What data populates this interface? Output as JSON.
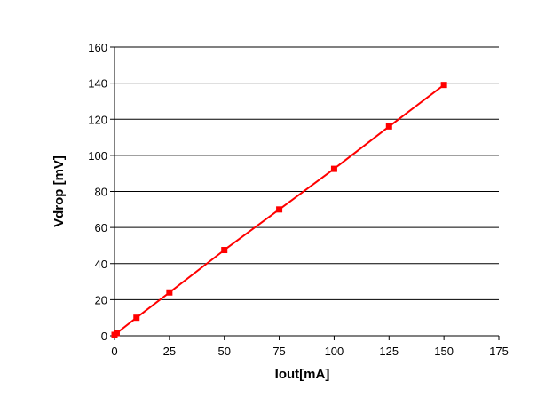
{
  "chart_data": {
    "type": "line",
    "title": "",
    "xlabel": "Iout[mA]",
    "ylabel": "Vdrop [mV]",
    "xlim": [
      0,
      175
    ],
    "ylim": [
      0,
      160
    ],
    "xticks": [
      0,
      25,
      50,
      75,
      100,
      125,
      150,
      175
    ],
    "yticks": [
      0,
      20,
      40,
      60,
      80,
      100,
      120,
      140,
      160
    ],
    "grid": "horizontal",
    "legend": "none",
    "series": [
      {
        "color": "#ff0000",
        "marker": "square",
        "x": [
          0,
          1,
          10,
          25,
          50,
          75,
          100,
          125,
          150
        ],
        "y": [
          0.5,
          1.5,
          10,
          24,
          47.5,
          70,
          92.5,
          116,
          139
        ]
      }
    ]
  }
}
